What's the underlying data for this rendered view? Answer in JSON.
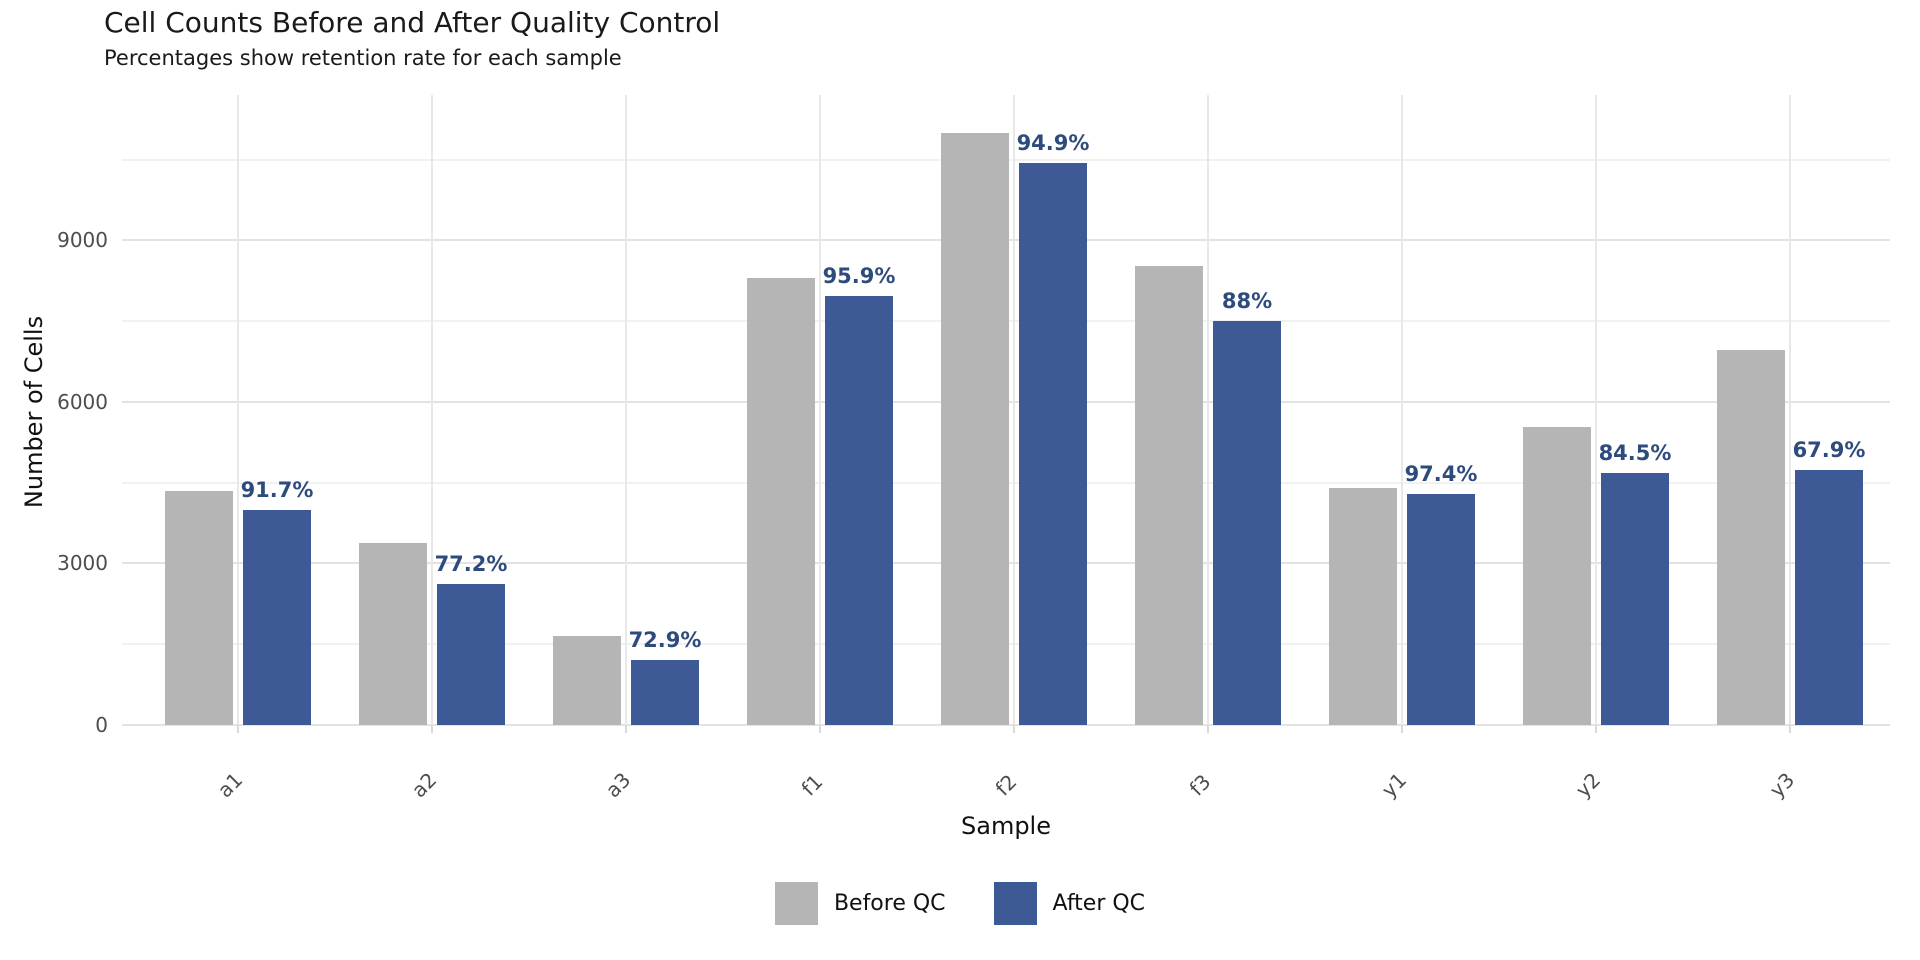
{
  "header": {
    "title": "Cell Counts Before and After Quality Control",
    "subtitle": "Percentages show retention rate for each sample"
  },
  "chart_data": {
    "type": "bar",
    "title": "Cell Counts Before and After Quality Control",
    "subtitle": "Percentages show retention rate for each sample",
    "xlabel": "Sample",
    "ylabel": "Number of Cells",
    "categories": [
      "a1",
      "a2",
      "a3",
      "f1",
      "f2",
      "f3",
      "y1",
      "y2",
      "y3"
    ],
    "series": [
      {
        "name": "Before QC",
        "color": "#b5b5b5",
        "values": [
          4350,
          3380,
          1660,
          8310,
          11000,
          8530,
          4400,
          5540,
          6970
        ]
      },
      {
        "name": "After QC",
        "color": "#3d5a96",
        "values": [
          3990,
          2610,
          1210,
          7970,
          10440,
          7510,
          4290,
          4680,
          4730
        ]
      }
    ],
    "bar_labels": [
      "91.7%",
      "77.2%",
      "72.9%",
      "95.9%",
      "94.9%",
      "88%",
      "97.4%",
      "84.5%",
      "67.9%"
    ],
    "retention_pct": [
      91.7,
      77.2,
      72.9,
      95.9,
      94.9,
      88,
      97.4,
      84.5,
      67.9
    ],
    "label_color": "#2e4b7d",
    "yticks": [
      0,
      3000,
      6000,
      9000
    ],
    "minor_gridlines": [
      1500,
      4500,
      7500,
      10500
    ],
    "ylim": [
      0,
      11700
    ],
    "grid": true,
    "legend_position": "bottom"
  },
  "legend": {
    "items": [
      {
        "label": "Before QC",
        "color": "#b5b5b5"
      },
      {
        "label": "After QC",
        "color": "#3d5a96"
      }
    ]
  }
}
